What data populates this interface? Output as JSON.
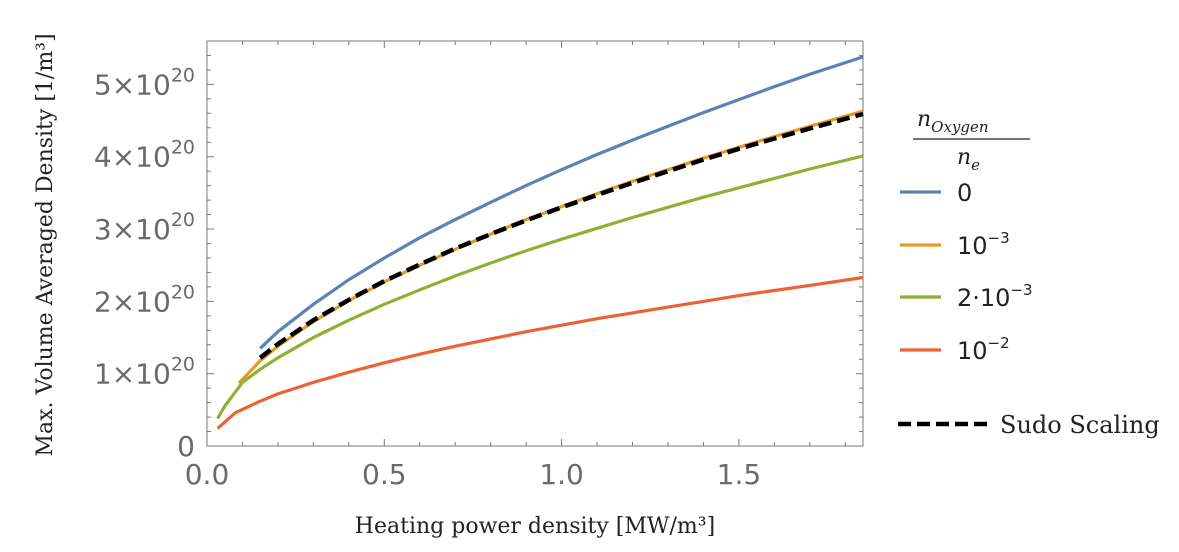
{
  "chart_data": {
    "type": "line",
    "xlabel": "Heating power density [MW/m³]",
    "ylabel": "Max. Volume Averaged Density [1/m³]",
    "xlim": [
      0.0,
      1.85
    ],
    "ylim": [
      0,
      5.6e+20
    ],
    "xticks": [
      0.0,
      0.5,
      1.0,
      1.5
    ],
    "xtick_labels": [
      "0.0",
      "0.5",
      "1.0",
      "1.5"
    ],
    "yticks": [
      0,
      1e+20,
      2e+20,
      3e+20,
      4e+20,
      5e+20
    ],
    "ytick_labels": [
      {
        "mant": "0",
        "exp": ""
      },
      {
        "mant": "1×10",
        "exp": "20"
      },
      {
        "mant": "2×10",
        "exp": "20"
      },
      {
        "mant": "3×10",
        "exp": "20"
      },
      {
        "mant": "4×10",
        "exp": "20"
      },
      {
        "mant": "5×10",
        "exp": "20"
      }
    ],
    "grid": false,
    "legend_title": {
      "num_main": "n",
      "num_sub": "Oxygen",
      "den_main": "n",
      "den_sub": "e"
    },
    "legend_position": "right",
    "series": [
      {
        "name": "0",
        "name_base": "0",
        "name_sup": "",
        "color": "#5e81b5",
        "dash": "solid",
        "x": [
          0.15,
          0.2,
          0.3,
          0.4,
          0.5,
          0.6,
          0.7,
          0.8,
          0.9,
          1.0,
          1.1,
          1.2,
          1.3,
          1.4,
          1.5,
          1.6,
          1.7,
          1.85
        ],
        "y": [
          1.35e+20,
          1.58e+20,
          1.96e+20,
          2.3e+20,
          2.6e+20,
          2.88e+20,
          3.13e+20,
          3.37e+20,
          3.6e+20,
          3.82e+20,
          4.03e+20,
          4.23e+20,
          4.42e+20,
          4.61e+20,
          4.79e+20,
          4.97e+20,
          5.14e+20,
          5.38e+20
        ]
      },
      {
        "name": "10⁻³",
        "name_base": "10",
        "name_sup": "−3",
        "color": "#e19c24",
        "dash": "solid",
        "x": [
          0.09,
          0.15,
          0.2,
          0.3,
          0.4,
          0.5,
          0.6,
          0.7,
          0.8,
          0.9,
          1.0,
          1.1,
          1.2,
          1.3,
          1.4,
          1.5,
          1.6,
          1.7,
          1.85
        ],
        "y": [
          8.7e+19,
          1.18e+20,
          1.38e+20,
          1.72e+20,
          2.01e+20,
          2.27e+20,
          2.5e+20,
          2.72e+20,
          2.93e+20,
          3.13e+20,
          3.31e+20,
          3.49e+20,
          3.66e+20,
          3.82e+20,
          3.98e+20,
          4.13e+20,
          4.28e+20,
          4.42e+20,
          4.63e+20
        ]
      },
      {
        "name": "2·10⁻³",
        "name_base": "2·10",
        "name_sup": "−3",
        "color": "#8fb032",
        "dash": "solid",
        "x": [
          0.03,
          0.05,
          0.1,
          0.15,
          0.2,
          0.3,
          0.4,
          0.5,
          0.6,
          0.7,
          0.8,
          0.9,
          1.0,
          1.1,
          1.2,
          1.3,
          1.4,
          1.5,
          1.6,
          1.7,
          1.85
        ],
        "y": [
          3.8e+19,
          5.5e+19,
          8.8e+19,
          1.06e+20,
          1.22e+20,
          1.5e+20,
          1.74e+20,
          1.96e+20,
          2.16e+20,
          2.35e+20,
          2.53e+20,
          2.7e+20,
          2.86e+20,
          3.01e+20,
          3.16e+20,
          3.3e+20,
          3.44e+20,
          3.57e+20,
          3.7e+20,
          3.83e+20,
          4.01e+20
        ]
      },
      {
        "name": "10⁻²",
        "name_base": "10",
        "name_sup": "−2",
        "color": "#eb6235",
        "dash": "solid",
        "x": [
          0.03,
          0.08,
          0.15,
          0.2,
          0.3,
          0.4,
          0.5,
          0.6,
          0.7,
          0.8,
          0.9,
          1.0,
          1.1,
          1.2,
          1.3,
          1.4,
          1.5,
          1.6,
          1.7,
          1.85
        ],
        "y": [
          2.4e+19,
          4.6e+19,
          6.2e+19,
          7.2e+19,
          8.8e+19,
          1.02e+20,
          1.15e+20,
          1.27e+20,
          1.38e+20,
          1.48e+20,
          1.58e+20,
          1.67e+20,
          1.76e+20,
          1.84e+20,
          1.92e+20,
          2e+20,
          2.08e+20,
          2.15e+20,
          2.22e+20,
          2.33e+20
        ]
      },
      {
        "name": "Sudo Scaling",
        "name_base": "Sudo Scaling",
        "name_sup": "",
        "color": "#000000",
        "dash": "dashed",
        "x": [
          0.15,
          0.2,
          0.3,
          0.4,
          0.5,
          0.6,
          0.7,
          0.8,
          0.9,
          1.0,
          1.1,
          1.2,
          1.3,
          1.4,
          1.5,
          1.6,
          1.7,
          1.85
        ],
        "y": [
          1.22e+20,
          1.41e+20,
          1.74e+20,
          2.02e+20,
          2.28e+20,
          2.51e+20,
          2.73e+20,
          2.93e+20,
          3.12e+20,
          3.3e+20,
          3.47e+20,
          3.64e+20,
          3.8e+20,
          3.96e+20,
          4.11e+20,
          4.25e+20,
          4.39e+20,
          4.59e+20
        ]
      }
    ]
  }
}
